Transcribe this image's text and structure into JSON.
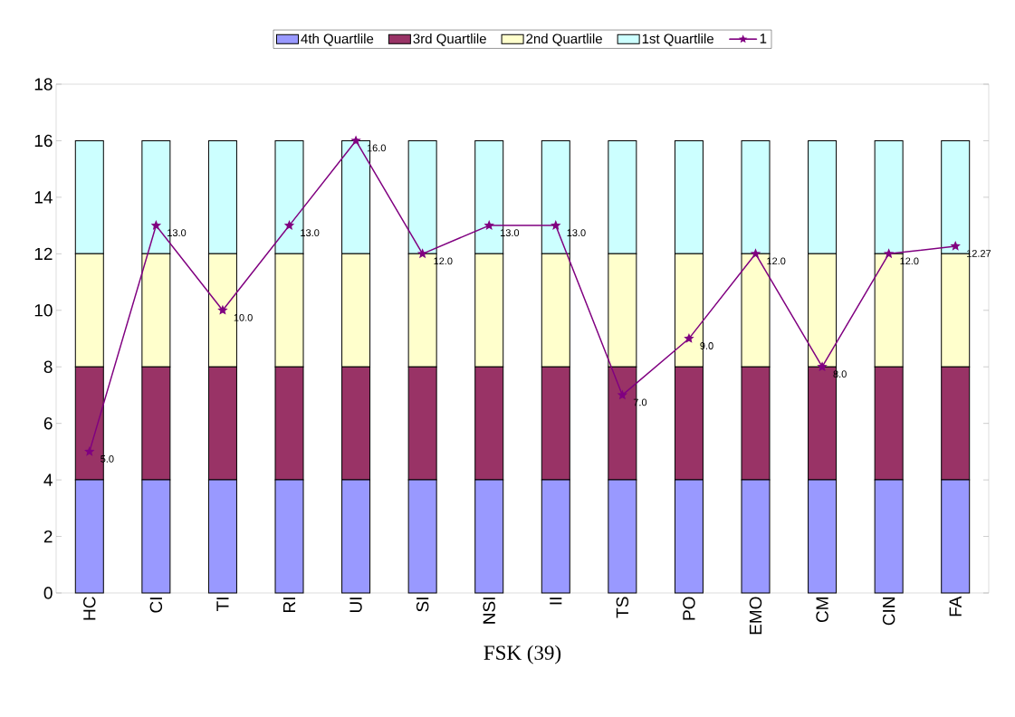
{
  "chart_data": {
    "type": "bar",
    "stacked": true,
    "xlabel": "FSK (39)",
    "categories": [
      "HC",
      "CI",
      "TI",
      "RI",
      "UI",
      "SI",
      "NSI",
      "II",
      "TS",
      "PO",
      "EMO",
      "CM",
      "CIN",
      "FA"
    ],
    "series": [
      {
        "name": "4th Quartlile",
        "color": "#9999ff",
        "values": [
          4,
          4,
          4,
          4,
          4,
          4,
          4,
          4,
          4,
          4,
          4,
          4,
          4,
          4
        ]
      },
      {
        "name": "3rd Quartlile",
        "color": "#993366",
        "values": [
          4,
          4,
          4,
          4,
          4,
          4,
          4,
          4,
          4,
          4,
          4,
          4,
          4,
          4
        ]
      },
      {
        "name": "2nd Quartlile",
        "color": "#ffffcc",
        "values": [
          4,
          4,
          4,
          4,
          4,
          4,
          4,
          4,
          4,
          4,
          4,
          4,
          4,
          4
        ]
      },
      {
        "name": "1st Quartlile",
        "color": "#ccffff",
        "values": [
          4,
          4,
          4,
          4,
          4,
          4,
          4,
          4,
          4,
          4,
          4,
          4,
          4,
          4
        ]
      },
      {
        "name": "1",
        "type": "line",
        "color": "#800080",
        "values": [
          5,
          13,
          10,
          13,
          16,
          12,
          13,
          13,
          7,
          9,
          12,
          8,
          12,
          12.27
        ],
        "value_labels": [
          "5.0",
          "13.0",
          "10.0",
          "13.0",
          "16.0",
          "12.0",
          "13.0",
          "13.0",
          "7.0",
          "9.0",
          "12.0",
          "8.0",
          "12.0",
          "12.27"
        ]
      }
    ],
    "ylim": [
      0,
      18
    ],
    "yticks": [
      0,
      2,
      4,
      6,
      8,
      10,
      12,
      14,
      16,
      18
    ],
    "legend": "top",
    "marker": "star",
    "line_style": "solid"
  }
}
